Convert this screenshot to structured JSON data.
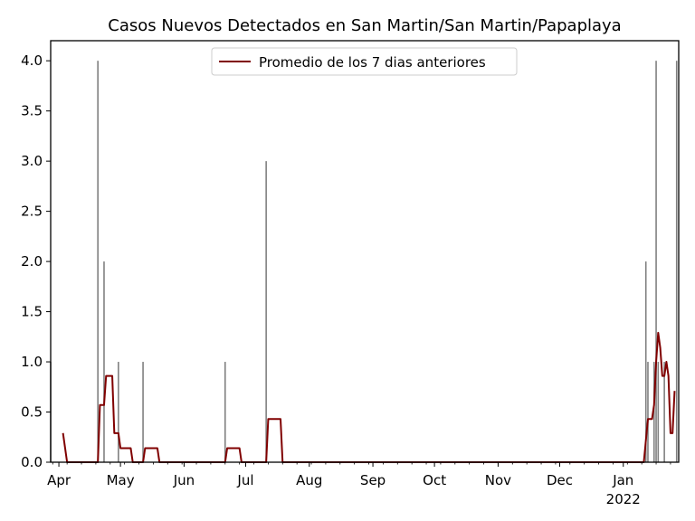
{
  "chart_data": {
    "type": "bar",
    "title": "Casos Nuevos Detectados en San Martin/San Martin/Papaplaya",
    "xlabel": "",
    "ylabel": "",
    "x_range": [
      "2021-03-28",
      "2022-01-28"
    ],
    "ylim": [
      0,
      4.2
    ],
    "yticks": [
      "0.0",
      "0.5",
      "1.0",
      "1.5",
      "2.0",
      "2.5",
      "3.0",
      "3.5",
      "4.0"
    ],
    "xticks": [
      {
        "date": "2021-04-01",
        "label": "Apr"
      },
      {
        "date": "2021-05-01",
        "label": "May"
      },
      {
        "date": "2021-06-01",
        "label": "Jun"
      },
      {
        "date": "2021-07-01",
        "label": "Jul"
      },
      {
        "date": "2021-08-01",
        "label": "Aug"
      },
      {
        "date": "2021-09-01",
        "label": "Sep"
      },
      {
        "date": "2021-10-01",
        "label": "Oct"
      },
      {
        "date": "2021-11-01",
        "label": "Nov"
      },
      {
        "date": "2021-12-01",
        "label": "Dec"
      },
      {
        "date": "2022-01-01",
        "label": "Jan",
        "sublabel": "2022"
      }
    ],
    "grid": false,
    "legend_position": "top-center",
    "bars": {
      "color": "#808080",
      "points": [
        {
          "date": "2021-03-28",
          "value": 1
        },
        {
          "date": "2021-04-20",
          "value": 4
        },
        {
          "date": "2021-04-23",
          "value": 2
        },
        {
          "date": "2021-04-30",
          "value": 1
        },
        {
          "date": "2021-05-12",
          "value": 1
        },
        {
          "date": "2021-06-21",
          "value": 1
        },
        {
          "date": "2021-07-11",
          "value": 3
        },
        {
          "date": "2022-01-12",
          "value": 2
        },
        {
          "date": "2022-01-13",
          "value": 1
        },
        {
          "date": "2022-01-16",
          "value": 1
        },
        {
          "date": "2022-01-17",
          "value": 4
        },
        {
          "date": "2022-01-18",
          "value": 1
        },
        {
          "date": "2022-01-21",
          "value": 1
        },
        {
          "date": "2022-01-27",
          "value": 4
        }
      ]
    },
    "series": [
      {
        "name": "Promedio de los 7 dias anteriores",
        "color": "#800000",
        "points": [
          {
            "date": "2021-04-03",
            "value": 0.29
          },
          {
            "date": "2021-04-05",
            "value": 0
          },
          {
            "date": "2021-04-20",
            "value": 0
          },
          {
            "date": "2021-04-21",
            "value": 0.57
          },
          {
            "date": "2021-04-23",
            "value": 0.57
          },
          {
            "date": "2021-04-24",
            "value": 0.86
          },
          {
            "date": "2021-04-27",
            "value": 0.86
          },
          {
            "date": "2021-04-28",
            "value": 0.29
          },
          {
            "date": "2021-04-30",
            "value": 0.29
          },
          {
            "date": "2021-05-01",
            "value": 0.14
          },
          {
            "date": "2021-05-06",
            "value": 0.14
          },
          {
            "date": "2021-05-07",
            "value": 0
          },
          {
            "date": "2021-05-12",
            "value": 0
          },
          {
            "date": "2021-05-13",
            "value": 0.14
          },
          {
            "date": "2021-05-19",
            "value": 0.14
          },
          {
            "date": "2021-05-20",
            "value": 0
          },
          {
            "date": "2021-06-21",
            "value": 0
          },
          {
            "date": "2021-06-22",
            "value": 0.14
          },
          {
            "date": "2021-06-28",
            "value": 0.14
          },
          {
            "date": "2021-06-29",
            "value": 0
          },
          {
            "date": "2021-07-11",
            "value": 0
          },
          {
            "date": "2021-07-12",
            "value": 0.43
          },
          {
            "date": "2021-07-18",
            "value": 0.43
          },
          {
            "date": "2021-07-19",
            "value": 0
          },
          {
            "date": "2022-01-11",
            "value": 0
          },
          {
            "date": "2022-01-13",
            "value": 0.43
          },
          {
            "date": "2022-01-15",
            "value": 0.43
          },
          {
            "date": "2022-01-16",
            "value": 0.57
          },
          {
            "date": "2022-01-17",
            "value": 1.0
          },
          {
            "date": "2022-01-18",
            "value": 1.29
          },
          {
            "date": "2022-01-19",
            "value": 1.14
          },
          {
            "date": "2022-01-20",
            "value": 0.86
          },
          {
            "date": "2022-01-21",
            "value": 0.86
          },
          {
            "date": "2022-01-22",
            "value": 1.0
          },
          {
            "date": "2022-01-23",
            "value": 0.86
          },
          {
            "date": "2022-01-24",
            "value": 0.29
          },
          {
            "date": "2022-01-25",
            "value": 0.29
          },
          {
            "date": "2022-01-26",
            "value": 0.71
          }
        ]
      }
    ]
  }
}
